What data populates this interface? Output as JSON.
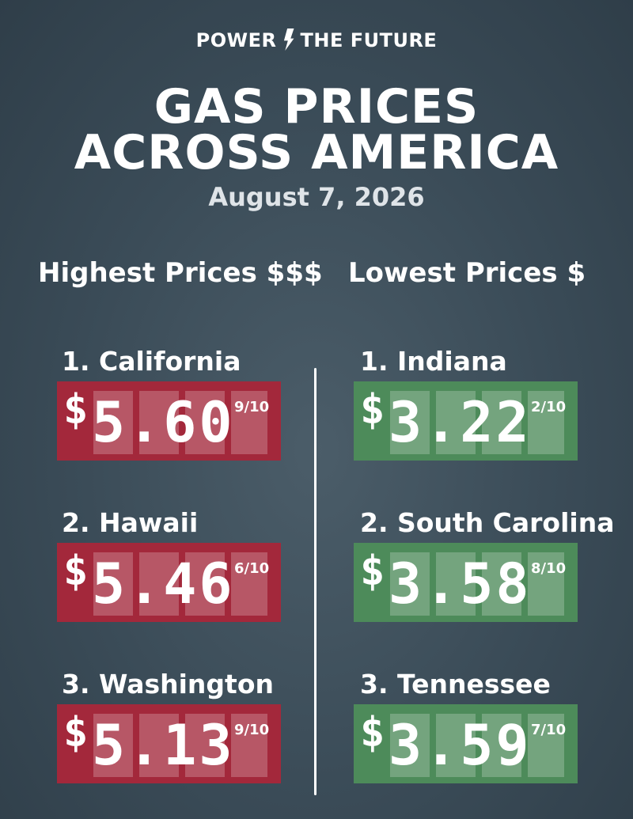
{
  "brand": {
    "left": "POWER",
    "right": "THE FUTURE"
  },
  "title": [
    "GAS PRICES",
    "ACROSS AMERICA"
  ],
  "date": "August 7, 2026",
  "columns": [
    {
      "heading": "Highest Prices $$$",
      "color": "#a3283b",
      "items": [
        {
          "label": "1. California",
          "currency": "$",
          "price": "5.60",
          "fraction": "9/10"
        },
        {
          "label": "2. Hawaii",
          "currency": "$",
          "price": "5.46",
          "fraction": "6/10"
        },
        {
          "label": "3. Washington",
          "currency": "$",
          "price": "5.13",
          "fraction": "9/10"
        }
      ]
    },
    {
      "heading": "Lowest Prices $",
      "color": "#4d8b5a",
      "items": [
        {
          "label": "1. Indiana",
          "currency": "$",
          "price": "3.22",
          "fraction": "2/10"
        },
        {
          "label": "2. South Carolina",
          "currency": "$",
          "price": "3.58",
          "fraction": "8/10"
        },
        {
          "label": "3. Tennessee",
          "currency": "$",
          "price": "3.59",
          "fraction": "7/10"
        }
      ]
    }
  ]
}
